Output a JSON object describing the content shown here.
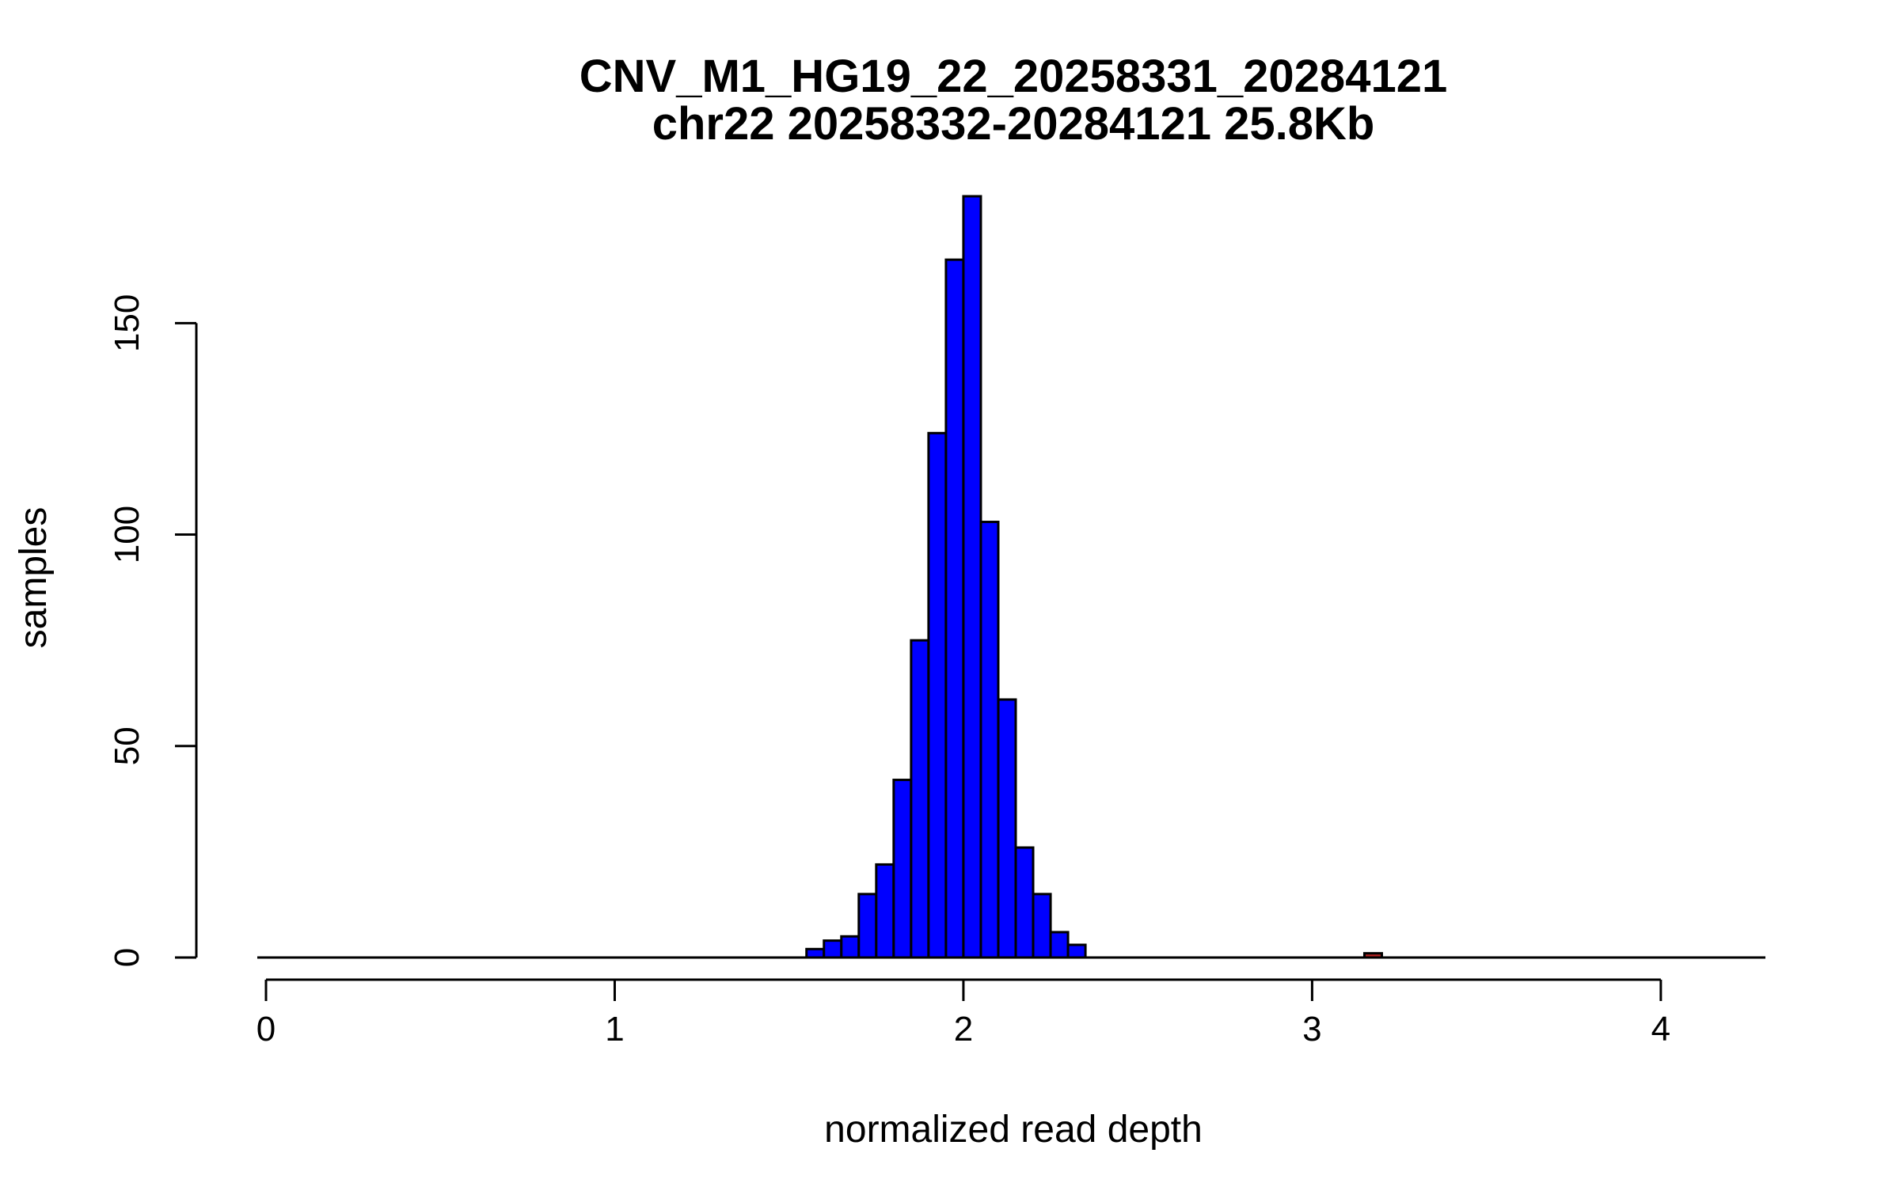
{
  "chart_data": {
    "type": "bar",
    "title": "CNV_M1_HG19_22_20258331_20284121",
    "subtitle": "chr22 20258332-20284121 25.8Kb",
    "xlabel": "normalized read depth",
    "ylabel": "samples",
    "xlim": [
      -0.025,
      4.3
    ],
    "ylim": [
      0,
      180
    ],
    "x_ticks": [
      0,
      1,
      2,
      3,
      4
    ],
    "y_ticks": [
      0,
      50,
      100,
      150
    ],
    "bin_width": 0.05,
    "grid": false,
    "legend": "none",
    "series": [
      {
        "color": "#0000ff",
        "bins": [
          {
            "x0": 1.55,
            "count": 2
          },
          {
            "x0": 1.6,
            "count": 4
          },
          {
            "x0": 1.65,
            "count": 5
          },
          {
            "x0": 1.7,
            "count": 15
          },
          {
            "x0": 1.75,
            "count": 22
          },
          {
            "x0": 1.8,
            "count": 42
          },
          {
            "x0": 1.85,
            "count": 75
          },
          {
            "x0": 1.9,
            "count": 124
          },
          {
            "x0": 1.95,
            "count": 165
          },
          {
            "x0": 2.0,
            "count": 180
          },
          {
            "x0": 2.05,
            "count": 103
          },
          {
            "x0": 2.1,
            "count": 61
          },
          {
            "x0": 2.15,
            "count": 26
          },
          {
            "x0": 2.2,
            "count": 15
          },
          {
            "x0": 2.25,
            "count": 6
          },
          {
            "x0": 2.3,
            "count": 3
          }
        ]
      },
      {
        "color": "#b22222",
        "bins": [
          {
            "x0": 3.15,
            "count": 1
          }
        ]
      }
    ]
  }
}
